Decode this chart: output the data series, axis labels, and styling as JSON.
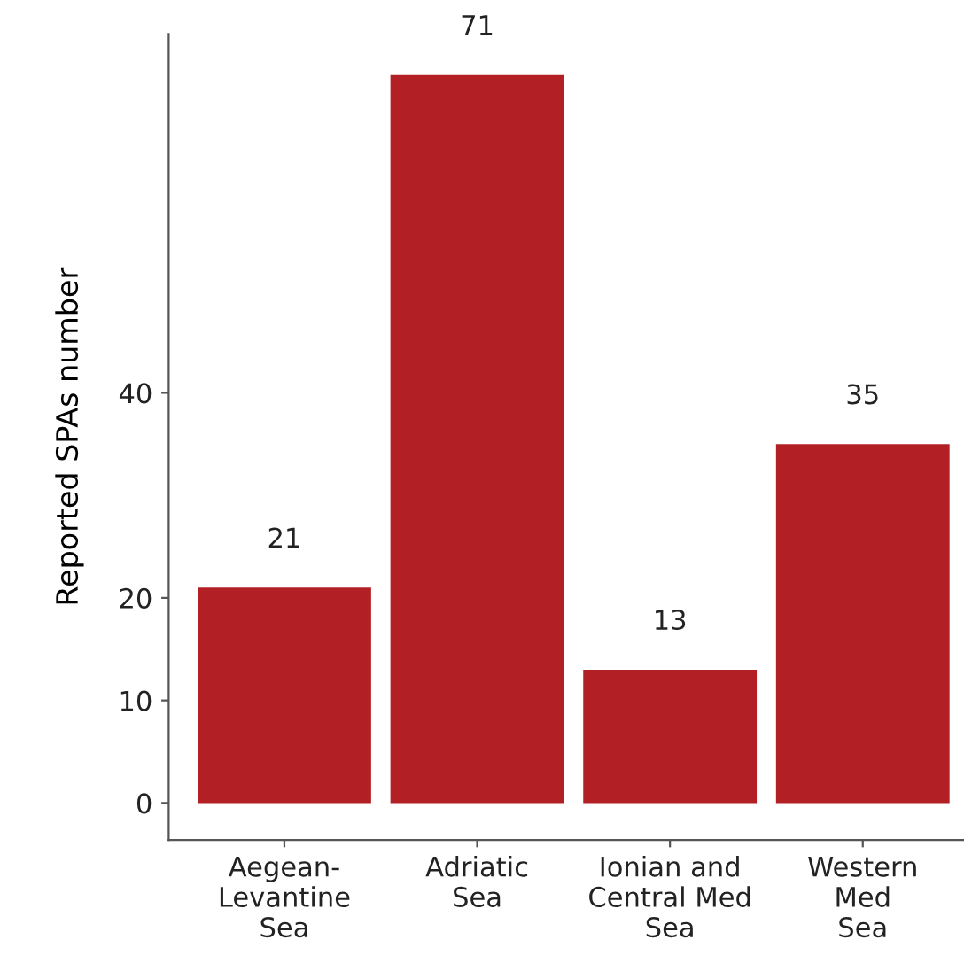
{
  "chart_data": {
    "type": "bar",
    "ylabel": "Reported SPAs number",
    "categories": [
      "Aegean-\nLevantine\nSea",
      "Adriatic\nSea",
      "Ionian and\nCentral Med\nSea",
      "Western\nMed\nSea"
    ],
    "values": [
      21,
      71,
      13,
      35
    ],
    "color": "#b22025",
    "ylim": [
      -3.6,
      75
    ],
    "yticks": [
      0,
      10,
      20,
      40
    ],
    "data_labels": true,
    "grid": false,
    "legend": false
  }
}
